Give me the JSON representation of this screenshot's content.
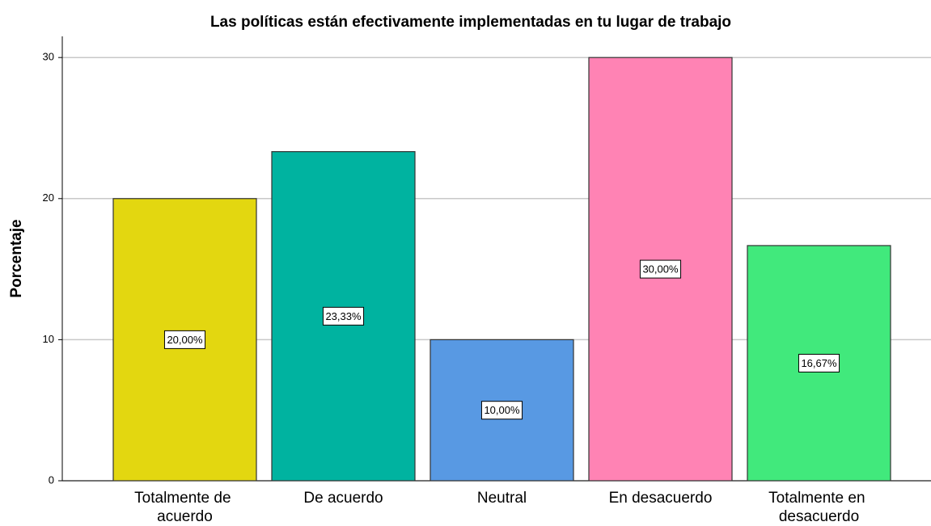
{
  "chart_data": {
    "type": "bar",
    "title": "Las políticas están efectivamente implementadas en tu lugar de trabajo",
    "y_label": "Porcentaje",
    "categories": [
      "Totalmente de acuerdo",
      "De acuerdo",
      "Neutral",
      "En desacuerdo",
      "Totalmente en desacuerdo"
    ],
    "values": [
      20,
      23.33,
      10,
      30,
      16.67
    ],
    "value_labels": [
      "20,00%",
      "23,33%",
      "10,00%",
      "30,00%",
      "16,67%"
    ],
    "colors": [
      "#e3d710",
      "#00b3a0",
      "#5899e3",
      "#ff83b4",
      "#41e97c"
    ],
    "ylim": [
      0,
      31.5
    ],
    "yticks": [
      0,
      10,
      20,
      30
    ],
    "grid": true
  }
}
